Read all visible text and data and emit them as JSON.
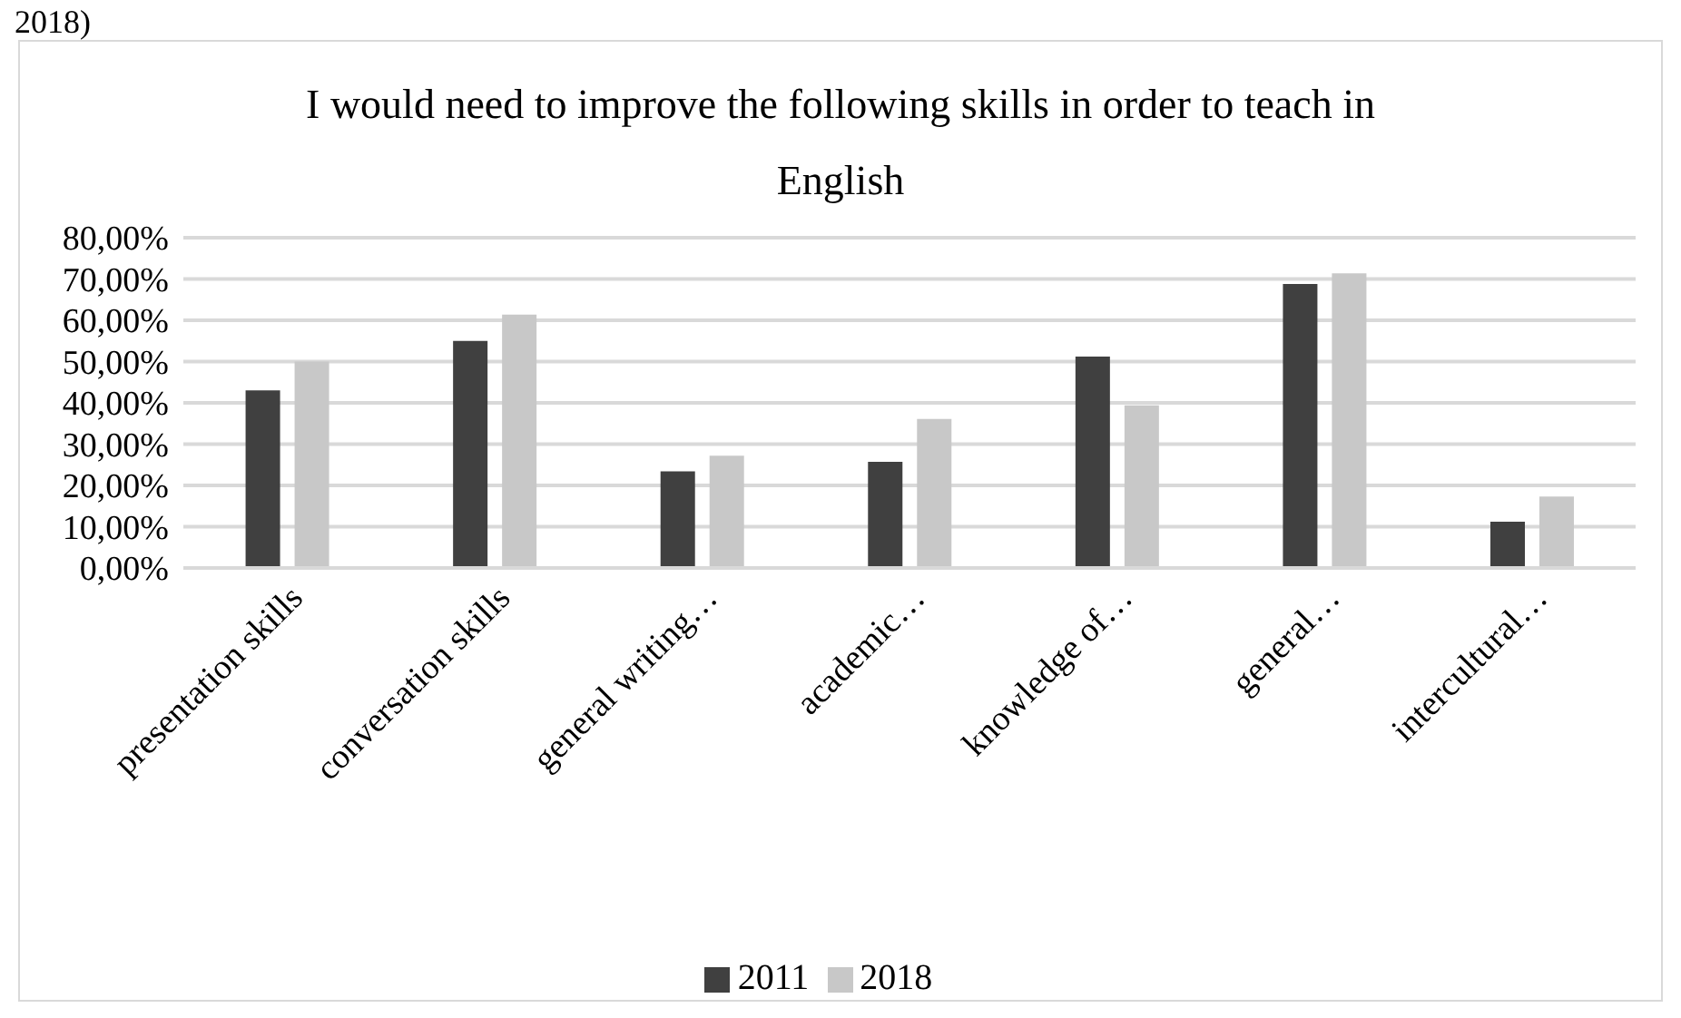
{
  "chart_data": {
    "type": "bar",
    "title": "I would need to improve the following skills in order to teach in English",
    "annotations": [
      "2018)"
    ],
    "categories": [
      "presentation skills",
      "conversation skills",
      "general writing…",
      "academic…",
      "knowledge of…",
      "general…",
      "intercultural…"
    ],
    "series": [
      {
        "name": "2011",
        "color": "#404040",
        "values": [
          43,
          55,
          23.4,
          25.7,
          51.2,
          68.8,
          11.2
        ]
      },
      {
        "name": "2018",
        "color": "#c8c8c8",
        "values": [
          50,
          61.4,
          27.2,
          36.1,
          39.4,
          71.4,
          17.3
        ]
      }
    ],
    "ylim": [
      0,
      80
    ],
    "yticks": [
      {
        "value": 0,
        "label": "0,00%"
      },
      {
        "value": 10,
        "label": "10,00%"
      },
      {
        "value": 20,
        "label": "20,00%"
      },
      {
        "value": 30,
        "label": "30,00%"
      },
      {
        "value": 40,
        "label": "40,00%"
      },
      {
        "value": 50,
        "label": "50,00%"
      },
      {
        "value": 60,
        "label": "60,00%"
      },
      {
        "value": 70,
        "label": "70,00%"
      },
      {
        "value": 80,
        "label": "80,00%"
      }
    ],
    "grid": "y",
    "legend": "bottom"
  }
}
